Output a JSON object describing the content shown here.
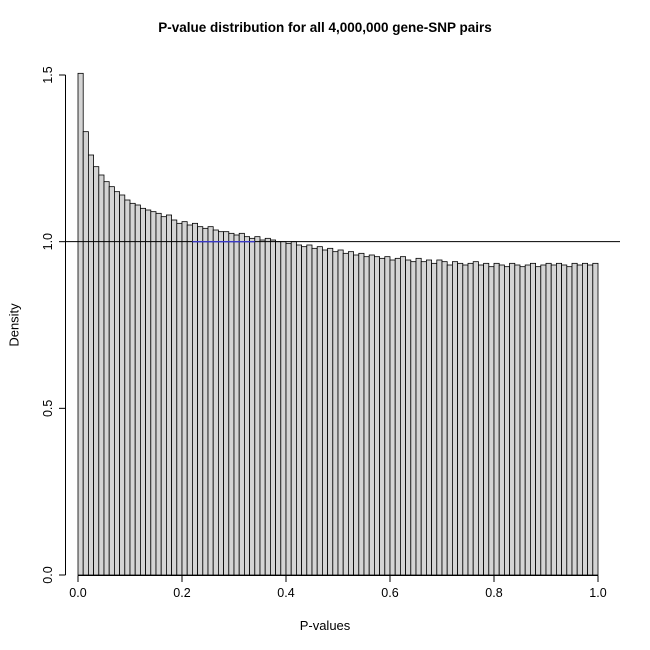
{
  "chart_data": {
    "type": "bar",
    "subtype": "histogram",
    "title": "P-value distribution for all 4,000,000 gene-SNP pairs",
    "xlabel": "P-values",
    "ylabel": "Density",
    "xlim": [
      0,
      1
    ],
    "ylim": [
      0,
      1.5
    ],
    "xticks": [
      "0.0",
      "0.2",
      "0.4",
      "0.6",
      "0.8",
      "1.0"
    ],
    "xtick_values": [
      0.0,
      0.2,
      0.4,
      0.6,
      0.8,
      1.0
    ],
    "yticks": [
      "0.0",
      "0.5",
      "1.0",
      "1.5"
    ],
    "ytick_values": [
      0.0,
      0.5,
      1.0,
      1.5
    ],
    "grid": false,
    "legend": false,
    "bin_start": 0,
    "bin_width": 0.01,
    "bar_fill": "#d4d4d4",
    "bar_stroke": "#000000",
    "values": [
      1.505,
      1.33,
      1.26,
      1.225,
      1.2,
      1.18,
      1.165,
      1.15,
      1.14,
      1.125,
      1.115,
      1.11,
      1.1,
      1.095,
      1.09,
      1.085,
      1.075,
      1.08,
      1.065,
      1.055,
      1.06,
      1.05,
      1.055,
      1.045,
      1.04,
      1.045,
      1.035,
      1.03,
      1.03,
      1.025,
      1.02,
      1.025,
      1.015,
      1.01,
      1.015,
      1.005,
      1.01,
      1.005,
      1.0,
      1.0,
      0.995,
      1.0,
      0.99,
      0.985,
      0.99,
      0.98,
      0.985,
      0.975,
      0.98,
      0.97,
      0.975,
      0.965,
      0.97,
      0.96,
      0.965,
      0.955,
      0.96,
      0.955,
      0.95,
      0.955,
      0.945,
      0.95,
      0.955,
      0.945,
      0.94,
      0.95,
      0.94,
      0.945,
      0.935,
      0.945,
      0.94,
      0.93,
      0.94,
      0.935,
      0.93,
      0.935,
      0.94,
      0.93,
      0.935,
      0.925,
      0.935,
      0.93,
      0.925,
      0.935,
      0.93,
      0.925,
      0.93,
      0.935,
      0.925,
      0.93,
      0.935,
      0.93,
      0.935,
      0.93,
      0.925,
      0.935,
      0.93,
      0.935,
      0.93,
      0.935
    ],
    "reference_line": {
      "y": 1.0,
      "color": "#000000",
      "blue_segment": {
        "x0": 0.22,
        "x1": 0.34,
        "color": "#3a3ac8"
      }
    }
  }
}
